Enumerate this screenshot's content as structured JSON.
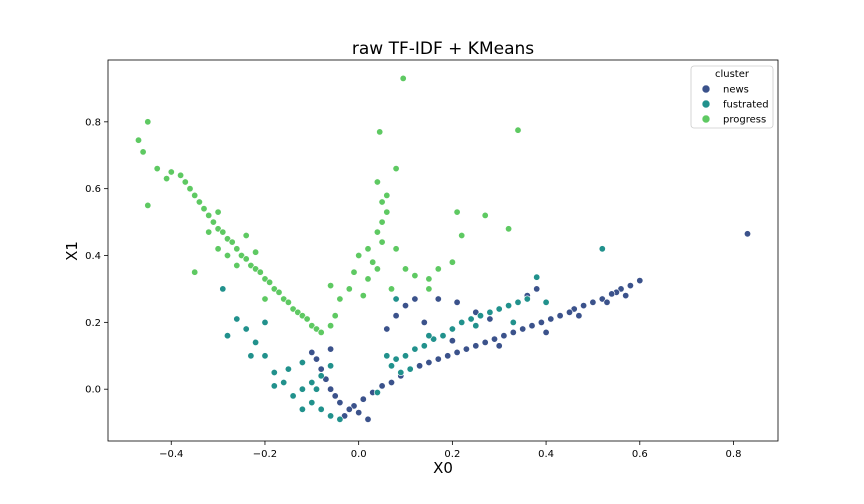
{
  "chart_data": {
    "type": "scatter",
    "title": "raw TF-IDF + KMeans",
    "xlabel": "X0",
    "ylabel": "X1",
    "xlim": [
      -0.535,
      0.895
    ],
    "ylim": [
      -0.155,
      0.985
    ],
    "xticks": [
      -0.4,
      -0.2,
      0.0,
      0.2,
      0.4,
      0.6,
      0.8
    ],
    "xtick_labels": [
      "−0.4",
      "−0.2",
      "0.0",
      "0.2",
      "0.4",
      "0.6",
      "0.8"
    ],
    "yticks": [
      0.0,
      0.2,
      0.4,
      0.6,
      0.8
    ],
    "ytick_labels": [
      "0.0",
      "0.2",
      "0.4",
      "0.6",
      "0.8"
    ],
    "grid": false,
    "legend": {
      "title": "cluster",
      "placement": "top-right"
    },
    "series": [
      {
        "name": "news",
        "color": "#3b528b",
        "points": [
          [
            0.83,
            0.465
          ],
          [
            0.6,
            0.325
          ],
          [
            0.58,
            0.31
          ],
          [
            0.56,
            0.3
          ],
          [
            0.55,
            0.29
          ],
          [
            0.54,
            0.285
          ],
          [
            0.52,
            0.27
          ],
          [
            0.5,
            0.26
          ],
          [
            0.48,
            0.25
          ],
          [
            0.46,
            0.24
          ],
          [
            0.45,
            0.23
          ],
          [
            0.43,
            0.22
          ],
          [
            0.41,
            0.21
          ],
          [
            0.39,
            0.2
          ],
          [
            0.37,
            0.19
          ],
          [
            0.35,
            0.18
          ],
          [
            0.33,
            0.17
          ],
          [
            0.31,
            0.16
          ],
          [
            0.29,
            0.15
          ],
          [
            0.27,
            0.14
          ],
          [
            0.25,
            0.13
          ],
          [
            0.23,
            0.12
          ],
          [
            0.21,
            0.11
          ],
          [
            0.19,
            0.1
          ],
          [
            0.17,
            0.09
          ],
          [
            0.15,
            0.08
          ],
          [
            0.13,
            0.07
          ],
          [
            0.11,
            0.06
          ],
          [
            0.09,
            0.04
          ],
          [
            0.07,
            0.02
          ],
          [
            0.05,
            0.01
          ],
          [
            0.03,
            -0.01
          ],
          [
            0.01,
            -0.03
          ],
          [
            -0.01,
            -0.05
          ],
          [
            -0.02,
            -0.06
          ],
          [
            -0.03,
            -0.08
          ],
          [
            -0.04,
            -0.04
          ],
          [
            -0.05,
            -0.02
          ],
          [
            -0.06,
            0.0
          ],
          [
            -0.07,
            0.03
          ],
          [
            -0.08,
            0.06
          ],
          [
            -0.09,
            0.09
          ],
          [
            -0.1,
            0.11
          ],
          [
            -0.06,
            0.12
          ],
          [
            0.02,
            -0.09
          ],
          [
            0.0,
            -0.07
          ],
          [
            0.06,
            0.18
          ],
          [
            0.08,
            0.22
          ],
          [
            0.1,
            0.25
          ],
          [
            0.12,
            0.27
          ],
          [
            0.14,
            0.2
          ],
          [
            0.17,
            0.27
          ],
          [
            0.21,
            0.26
          ],
          [
            0.25,
            0.23
          ],
          [
            0.28,
            0.21
          ],
          [
            0.36,
            0.28
          ],
          [
            0.38,
            0.3
          ],
          [
            0.2,
            0.145
          ],
          [
            0.3,
            0.13
          ],
          [
            0.4,
            0.17
          ],
          [
            0.47,
            0.22
          ],
          [
            0.53,
            0.26
          ],
          [
            0.57,
            0.28
          ]
        ]
      },
      {
        "name": "fustrated",
        "color": "#21918c",
        "points": [
          [
            0.52,
            0.42
          ],
          [
            0.38,
            0.335
          ],
          [
            0.36,
            0.27
          ],
          [
            0.34,
            0.26
          ],
          [
            0.32,
            0.25
          ],
          [
            0.3,
            0.24
          ],
          [
            0.28,
            0.23
          ],
          [
            0.26,
            0.22
          ],
          [
            0.24,
            0.21
          ],
          [
            0.22,
            0.2
          ],
          [
            0.2,
            0.18
          ],
          [
            0.18,
            0.16
          ],
          [
            0.16,
            0.15
          ],
          [
            0.14,
            0.13
          ],
          [
            0.12,
            0.12
          ],
          [
            0.1,
            0.1
          ],
          [
            0.08,
            0.09
          ],
          [
            0.07,
            0.07
          ],
          [
            0.09,
            0.05
          ],
          [
            0.11,
            0.06
          ],
          [
            0.06,
            0.1
          ],
          [
            -0.06,
            0.07
          ],
          [
            -0.08,
            0.04
          ],
          [
            -0.1,
            0.02
          ],
          [
            -0.12,
            0.0
          ],
          [
            -0.14,
            -0.02
          ],
          [
            -0.16,
            0.02
          ],
          [
            -0.18,
            0.05
          ],
          [
            -0.2,
            0.1
          ],
          [
            -0.22,
            0.14
          ],
          [
            -0.24,
            0.18
          ],
          [
            -0.26,
            0.21
          ],
          [
            -0.28,
            0.16
          ],
          [
            -0.29,
            0.3
          ],
          [
            -0.1,
            -0.04
          ],
          [
            -0.12,
            -0.06
          ],
          [
            -0.08,
            -0.06
          ],
          [
            -0.06,
            -0.08
          ],
          [
            -0.04,
            -0.09
          ],
          [
            -0.12,
            0.08
          ],
          [
            -0.15,
            0.06
          ],
          [
            -0.18,
            0.01
          ],
          [
            -0.23,
            0.1
          ],
          [
            -0.2,
            0.2
          ],
          [
            0.08,
            0.27
          ],
          [
            0.15,
            0.16
          ],
          [
            0.25,
            0.19
          ],
          [
            0.33,
            0.2
          ],
          [
            0.4,
            0.26
          ],
          [
            0.04,
            -0.01
          ],
          [
            -0.09,
            0.0
          ]
        ]
      },
      {
        "name": "progress",
        "color": "#5ec962",
        "points": [
          [
            0.095,
            0.93
          ],
          [
            -0.45,
            0.8
          ],
          [
            -0.47,
            0.745
          ],
          [
            -0.46,
            0.71
          ],
          [
            -0.43,
            0.66
          ],
          [
            -0.41,
            0.63
          ],
          [
            -0.4,
            0.65
          ],
          [
            -0.38,
            0.64
          ],
          [
            -0.37,
            0.62
          ],
          [
            -0.36,
            0.6
          ],
          [
            -0.35,
            0.58
          ],
          [
            -0.34,
            0.56
          ],
          [
            -0.33,
            0.54
          ],
          [
            -0.32,
            0.52
          ],
          [
            -0.31,
            0.5
          ],
          [
            -0.3,
            0.48
          ],
          [
            -0.29,
            0.47
          ],
          [
            -0.28,
            0.45
          ],
          [
            -0.27,
            0.44
          ],
          [
            -0.26,
            0.42
          ],
          [
            -0.25,
            0.4
          ],
          [
            -0.24,
            0.39
          ],
          [
            -0.23,
            0.37
          ],
          [
            -0.22,
            0.36
          ],
          [
            -0.21,
            0.35
          ],
          [
            -0.2,
            0.33
          ],
          [
            -0.19,
            0.32
          ],
          [
            -0.18,
            0.3
          ],
          [
            -0.17,
            0.29
          ],
          [
            -0.16,
            0.27
          ],
          [
            -0.15,
            0.26
          ],
          [
            -0.14,
            0.24
          ],
          [
            -0.13,
            0.23
          ],
          [
            -0.12,
            0.22
          ],
          [
            -0.11,
            0.21
          ],
          [
            -0.1,
            0.19
          ],
          [
            -0.09,
            0.18
          ],
          [
            -0.08,
            0.17
          ],
          [
            -0.45,
            0.55
          ],
          [
            -0.35,
            0.35
          ],
          [
            -0.3,
            0.53
          ],
          [
            -0.26,
            0.37
          ],
          [
            -0.24,
            0.46
          ],
          [
            -0.22,
            0.41
          ],
          [
            -0.2,
            0.27
          ],
          [
            -0.28,
            0.4
          ],
          [
            -0.32,
            0.47
          ],
          [
            -0.3,
            0.42
          ],
          [
            0.045,
            0.77
          ],
          [
            0.34,
            0.775
          ],
          [
            0.08,
            0.66
          ],
          [
            0.04,
            0.62
          ],
          [
            0.06,
            0.58
          ],
          [
            0.05,
            0.56
          ],
          [
            0.06,
            0.53
          ],
          [
            0.05,
            0.5
          ],
          [
            0.04,
            0.47
          ],
          [
            0.05,
            0.44
          ],
          [
            0.02,
            0.42
          ],
          [
            0.0,
            0.4
          ],
          [
            0.03,
            0.38
          ],
          [
            0.04,
            0.36
          ],
          [
            -0.01,
            0.35
          ],
          [
            0.02,
            0.33
          ],
          [
            -0.02,
            0.3
          ],
          [
            0.01,
            0.28
          ],
          [
            0.08,
            0.42
          ],
          [
            0.1,
            0.36
          ],
          [
            0.12,
            0.34
          ],
          [
            0.15,
            0.33
          ],
          [
            0.15,
            0.3
          ],
          [
            0.17,
            0.36
          ],
          [
            0.2,
            0.38
          ],
          [
            0.22,
            0.46
          ],
          [
            0.21,
            0.53
          ],
          [
            0.27,
            0.52
          ],
          [
            0.32,
            0.48
          ],
          [
            -0.06,
            0.31
          ],
          [
            -0.04,
            0.27
          ],
          [
            -0.05,
            0.22
          ],
          [
            -0.06,
            0.19
          ],
          [
            0.07,
            0.3
          ]
        ]
      }
    ]
  }
}
